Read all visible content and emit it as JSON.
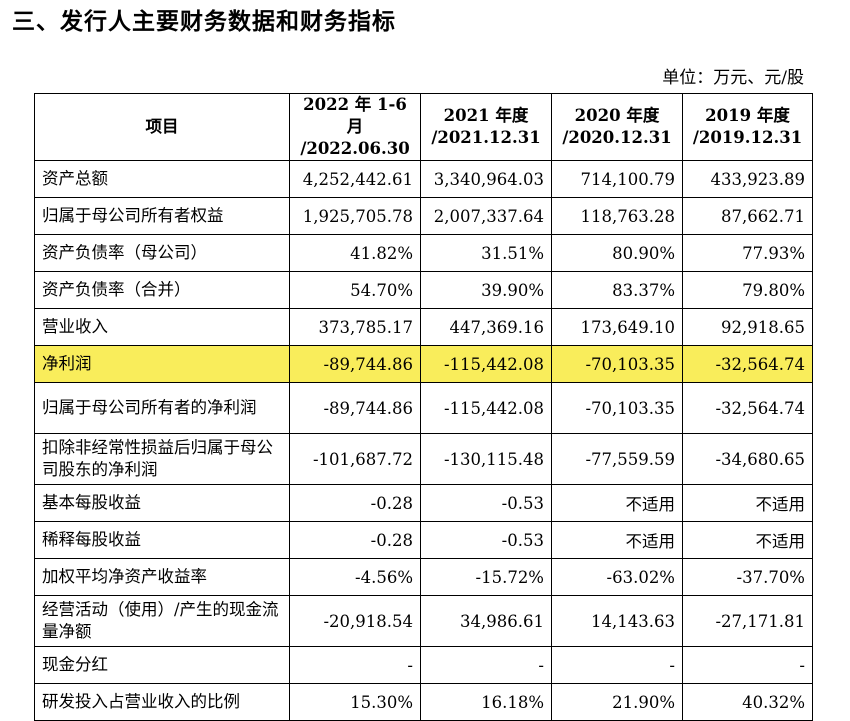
{
  "heading": "三、发行人主要财务数据和财务指标",
  "unit": "单位：万元、元/股",
  "columns": {
    "item": "项目",
    "p1": [
      "2022 年 1-6 月",
      "/2022.06.30"
    ],
    "p2": [
      "2021 年度",
      "/2021.12.31"
    ],
    "p3": [
      "2020 年度",
      "/2020.12.31"
    ],
    "p4": [
      "2019 年度",
      "/2019.12.31"
    ]
  },
  "rows": [
    {
      "item": "资产总额",
      "v": [
        "4,252,442.61",
        "3,340,964.03",
        "714,100.79",
        "433,923.89"
      ]
    },
    {
      "item": "归属于母公司所有者权益",
      "v": [
        "1,925,705.78",
        "2,007,337.64",
        "118,763.28",
        "87,662.71"
      ]
    },
    {
      "item": "资产负债率（母公司）",
      "v": [
        "41.82%",
        "31.51%",
        "80.90%",
        "77.93%"
      ]
    },
    {
      "item": "资产负债率（合并）",
      "v": [
        "54.70%",
        "39.90%",
        "83.37%",
        "79.80%"
      ]
    },
    {
      "item": "营业收入",
      "v": [
        "373,785.17",
        "447,369.16",
        "173,649.10",
        "92,918.65"
      ]
    },
    {
      "item": "净利润",
      "v": [
        "-89,744.86",
        "-115,442.08",
        "-70,103.35",
        "-32,564.74"
      ]
    },
    {
      "item": "归属于母公司所有者的净利润",
      "v": [
        "-89,744.86",
        "-115,442.08",
        "-70,103.35",
        "-32,564.74"
      ]
    },
    {
      "item": "扣除非经常性损益后归属于母公司股东的净利润",
      "v": [
        "-101,687.72",
        "-130,115.48",
        "-77,559.59",
        "-34,680.65"
      ]
    },
    {
      "item": "基本每股收益",
      "v": [
        "-0.28",
        "-0.53",
        "不适用",
        "不适用"
      ]
    },
    {
      "item": "稀释每股收益",
      "v": [
        "-0.28",
        "-0.53",
        "不适用",
        "不适用"
      ]
    },
    {
      "item": "加权平均净资产收益率",
      "v": [
        "-4.56%",
        "-15.72%",
        "-63.02%",
        "-37.70%"
      ]
    },
    {
      "item": "经营活动（使用）/产生的现金流量净额",
      "v": [
        "-20,918.54",
        "34,986.61",
        "14,143.63",
        "-27,171.81"
      ]
    },
    {
      "item": "现金分红",
      "v": [
        "-",
        "-",
        "-",
        "-"
      ]
    },
    {
      "item": "研发投入占营业收入的比例",
      "v": [
        "15.30%",
        "16.18%",
        "21.90%",
        "40.32%"
      ]
    }
  ],
  "highlight_color": "#f9ed5b"
}
